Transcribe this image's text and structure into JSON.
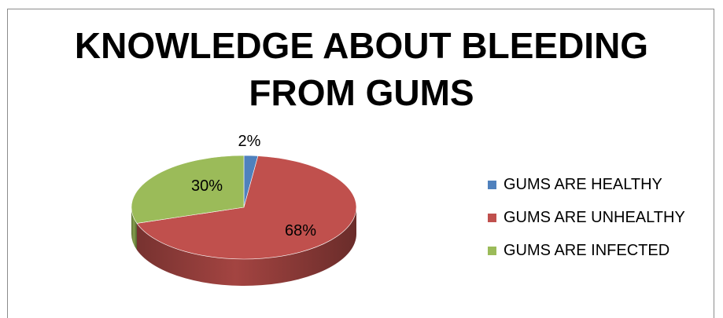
{
  "chart_data": {
    "type": "pie",
    "title": "KNOWLEDGE ABOUT BLEEDING FROM GUMS",
    "title_lines": [
      "KNOWLEDGE ABOUT BLEEDING",
      "FROM GUMS"
    ],
    "categories": [
      "GUMS ARE HEALTHY",
      "GUMS ARE UNHEALTHY",
      "GUMS ARE INFECTED"
    ],
    "values": [
      2,
      68,
      30
    ],
    "data_labels": [
      "2%",
      "68%",
      "30%"
    ],
    "colors": [
      "#4f81bd",
      "#c0504d",
      "#9bbb59"
    ],
    "style": "3d-pie",
    "legend_position": "right"
  }
}
